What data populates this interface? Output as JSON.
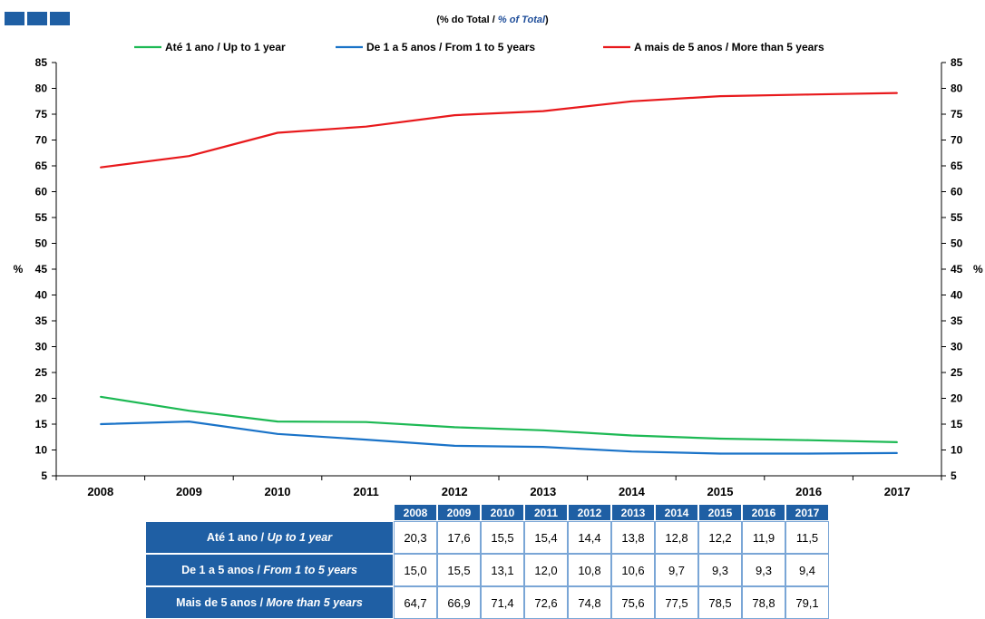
{
  "subtitle": {
    "pt": "(% do Total / ",
    "en": "% of Total",
    "close": ")"
  },
  "colors": {
    "green": "#1db954",
    "blue": "#1a73c8",
    "red": "#e8191c",
    "header_bg": "#1f5fa4"
  },
  "chart_data": {
    "type": "line",
    "x": [
      "2008",
      "2009",
      "2010",
      "2011",
      "2012",
      "2013",
      "2014",
      "2015",
      "2016",
      "2017"
    ],
    "ylim": [
      5,
      85
    ],
    "yticks": [
      5,
      10,
      15,
      20,
      25,
      30,
      35,
      40,
      45,
      50,
      55,
      60,
      65,
      70,
      75,
      80,
      85
    ],
    "ylabel_left": "%",
    "ylabel_right": "%",
    "legend_position": "top",
    "series": [
      {
        "name": "Até 1 ano / Up to 1 year",
        "color": "#1db954",
        "values": [
          20.3,
          17.6,
          15.5,
          15.4,
          14.4,
          13.8,
          12.8,
          12.2,
          11.9,
          11.5
        ]
      },
      {
        "name": "De 1 a 5 anos / From 1 to 5 years",
        "color": "#1a73c8",
        "values": [
          15.0,
          15.5,
          13.1,
          12.0,
          10.8,
          10.6,
          9.7,
          9.3,
          9.3,
          9.4
        ]
      },
      {
        "name": "A mais de 5 anos / More than 5 years",
        "color": "#e8191c",
        "values": [
          64.7,
          66.9,
          71.4,
          72.6,
          74.8,
          75.6,
          77.5,
          78.5,
          78.8,
          79.1
        ]
      }
    ]
  },
  "table": {
    "years": [
      "2008",
      "2009",
      "2010",
      "2011",
      "2012",
      "2013",
      "2014",
      "2015",
      "2016",
      "2017"
    ],
    "rows": [
      {
        "label_pt": "Até 1 ano / ",
        "label_en": "Up to 1 year",
        "values": [
          "20,3",
          "17,6",
          "15,5",
          "15,4",
          "14,4",
          "13,8",
          "12,8",
          "12,2",
          "11,9",
          "11,5"
        ]
      },
      {
        "label_pt": "De 1 a 5 anos / ",
        "label_en": "From 1 to 5 years",
        "values": [
          "15,0",
          "15,5",
          "13,1",
          "12,0",
          "10,8",
          "10,6",
          "9,7",
          "9,3",
          "9,3",
          "9,4"
        ]
      },
      {
        "label_pt": "Mais de 5 anos / ",
        "label_en": "More than 5 years",
        "values": [
          "64,7",
          "66,9",
          "71,4",
          "72,6",
          "74,8",
          "75,6",
          "77,5",
          "78,5",
          "78,8",
          "79,1"
        ]
      }
    ]
  }
}
